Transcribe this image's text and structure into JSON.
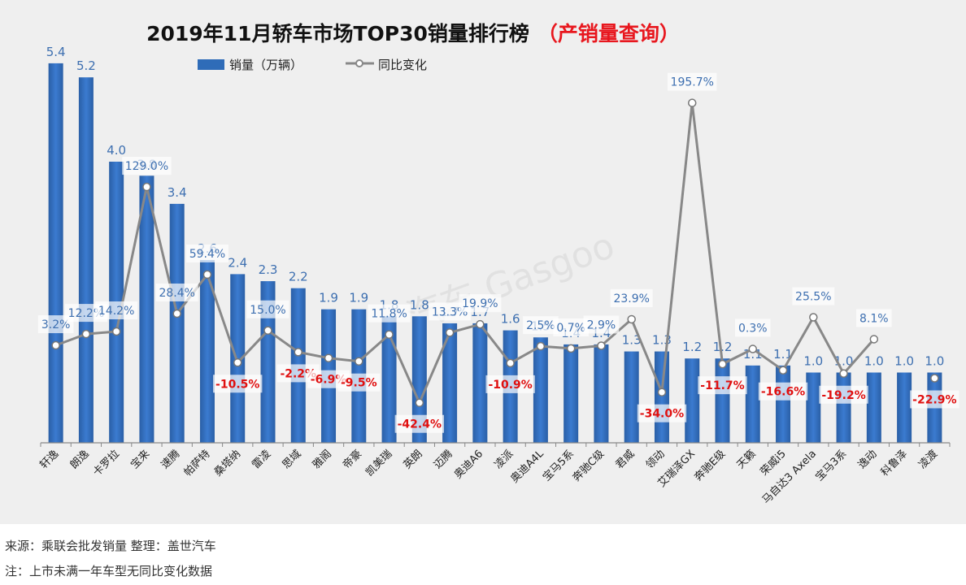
{
  "chart_data": {
    "type": "bar",
    "title": "2019年11月轿车市场TOP30销量排行榜",
    "title_highlight": "（产销量查询）",
    "legend": [
      {
        "name": "销量（万辆）",
        "kind": "bar"
      },
      {
        "name": "同比变化",
        "kind": "line"
      }
    ],
    "categories": [
      "轩逸",
      "朗逸",
      "卡罗拉",
      "宝来",
      "速腾",
      "帕萨特",
      "桑塔纳",
      "雷凌",
      "思域",
      "雅阁",
      "帝豪",
      "凯美瑞",
      "英朗",
      "迈腾",
      "奥迪A6",
      "凌派",
      "奥迪A4L",
      "宝马5系",
      "奔驰C级",
      "君威",
      "领动",
      "艾瑞泽GX",
      "奔驰E级",
      "天籁",
      "荣威i5",
      "马自达3 Axela",
      "宝马3系",
      "逸动",
      "科鲁泽",
      "凌渡"
    ],
    "series": [
      {
        "name": "销量（万辆）",
        "type": "bar",
        "values": [
          5.4,
          5.2,
          4.0,
          3.8,
          3.4,
          2.6,
          2.4,
          2.3,
          2.2,
          1.9,
          1.9,
          1.8,
          1.8,
          1.7,
          1.7,
          1.6,
          1.5,
          1.4,
          1.4,
          1.3,
          1.3,
          1.2,
          1.2,
          1.1,
          1.1,
          1.0,
          1.0,
          1.0,
          1.0,
          1.0
        ],
        "color": "#2f6cb8"
      },
      {
        "name": "同比变化",
        "type": "line",
        "values": [
          3.2,
          12.2,
          14.2,
          129.0,
          28.4,
          59.4,
          -10.5,
          15.0,
          -2.2,
          -6.9,
          -9.5,
          11.8,
          -42.4,
          13.3,
          19.9,
          -10.9,
          2.5,
          0.7,
          2.9,
          23.9,
          -34.0,
          195.7,
          -11.7,
          0.3,
          -16.6,
          25.5,
          -19.2,
          8.1,
          null,
          -22.9
        ],
        "labels": [
          "3.2%",
          "12.2%",
          "14.2%",
          "129.0%",
          "28.4%",
          "59.4%",
          "-10.5%",
          "15.0%",
          "-2.2%",
          "-6.9%",
          "-9.5%",
          "11.8%",
          "-42.4%",
          "13.3%",
          "19.9%",
          "-10.9%",
          "2.5%",
          "0.7%",
          "2.9%",
          "23.9%",
          "-34.0%",
          "195.7%",
          "-11.7%",
          "0.3%",
          "-16.6%",
          "25.5%",
          "-19.2%",
          "8.1%",
          "",
          "-22.9%"
        ],
        "color": "#888888"
      }
    ],
    "negative_label_color": "#e01010",
    "positive_label_color": "#3d6fb0",
    "grid": false
  },
  "footer": {
    "source": "来源：乘联会批发销量   整理：盖世汽车",
    "note": "注：上市未满一年车型无同比变化数据"
  },
  "watermark": "汽车 Gasgoo"
}
